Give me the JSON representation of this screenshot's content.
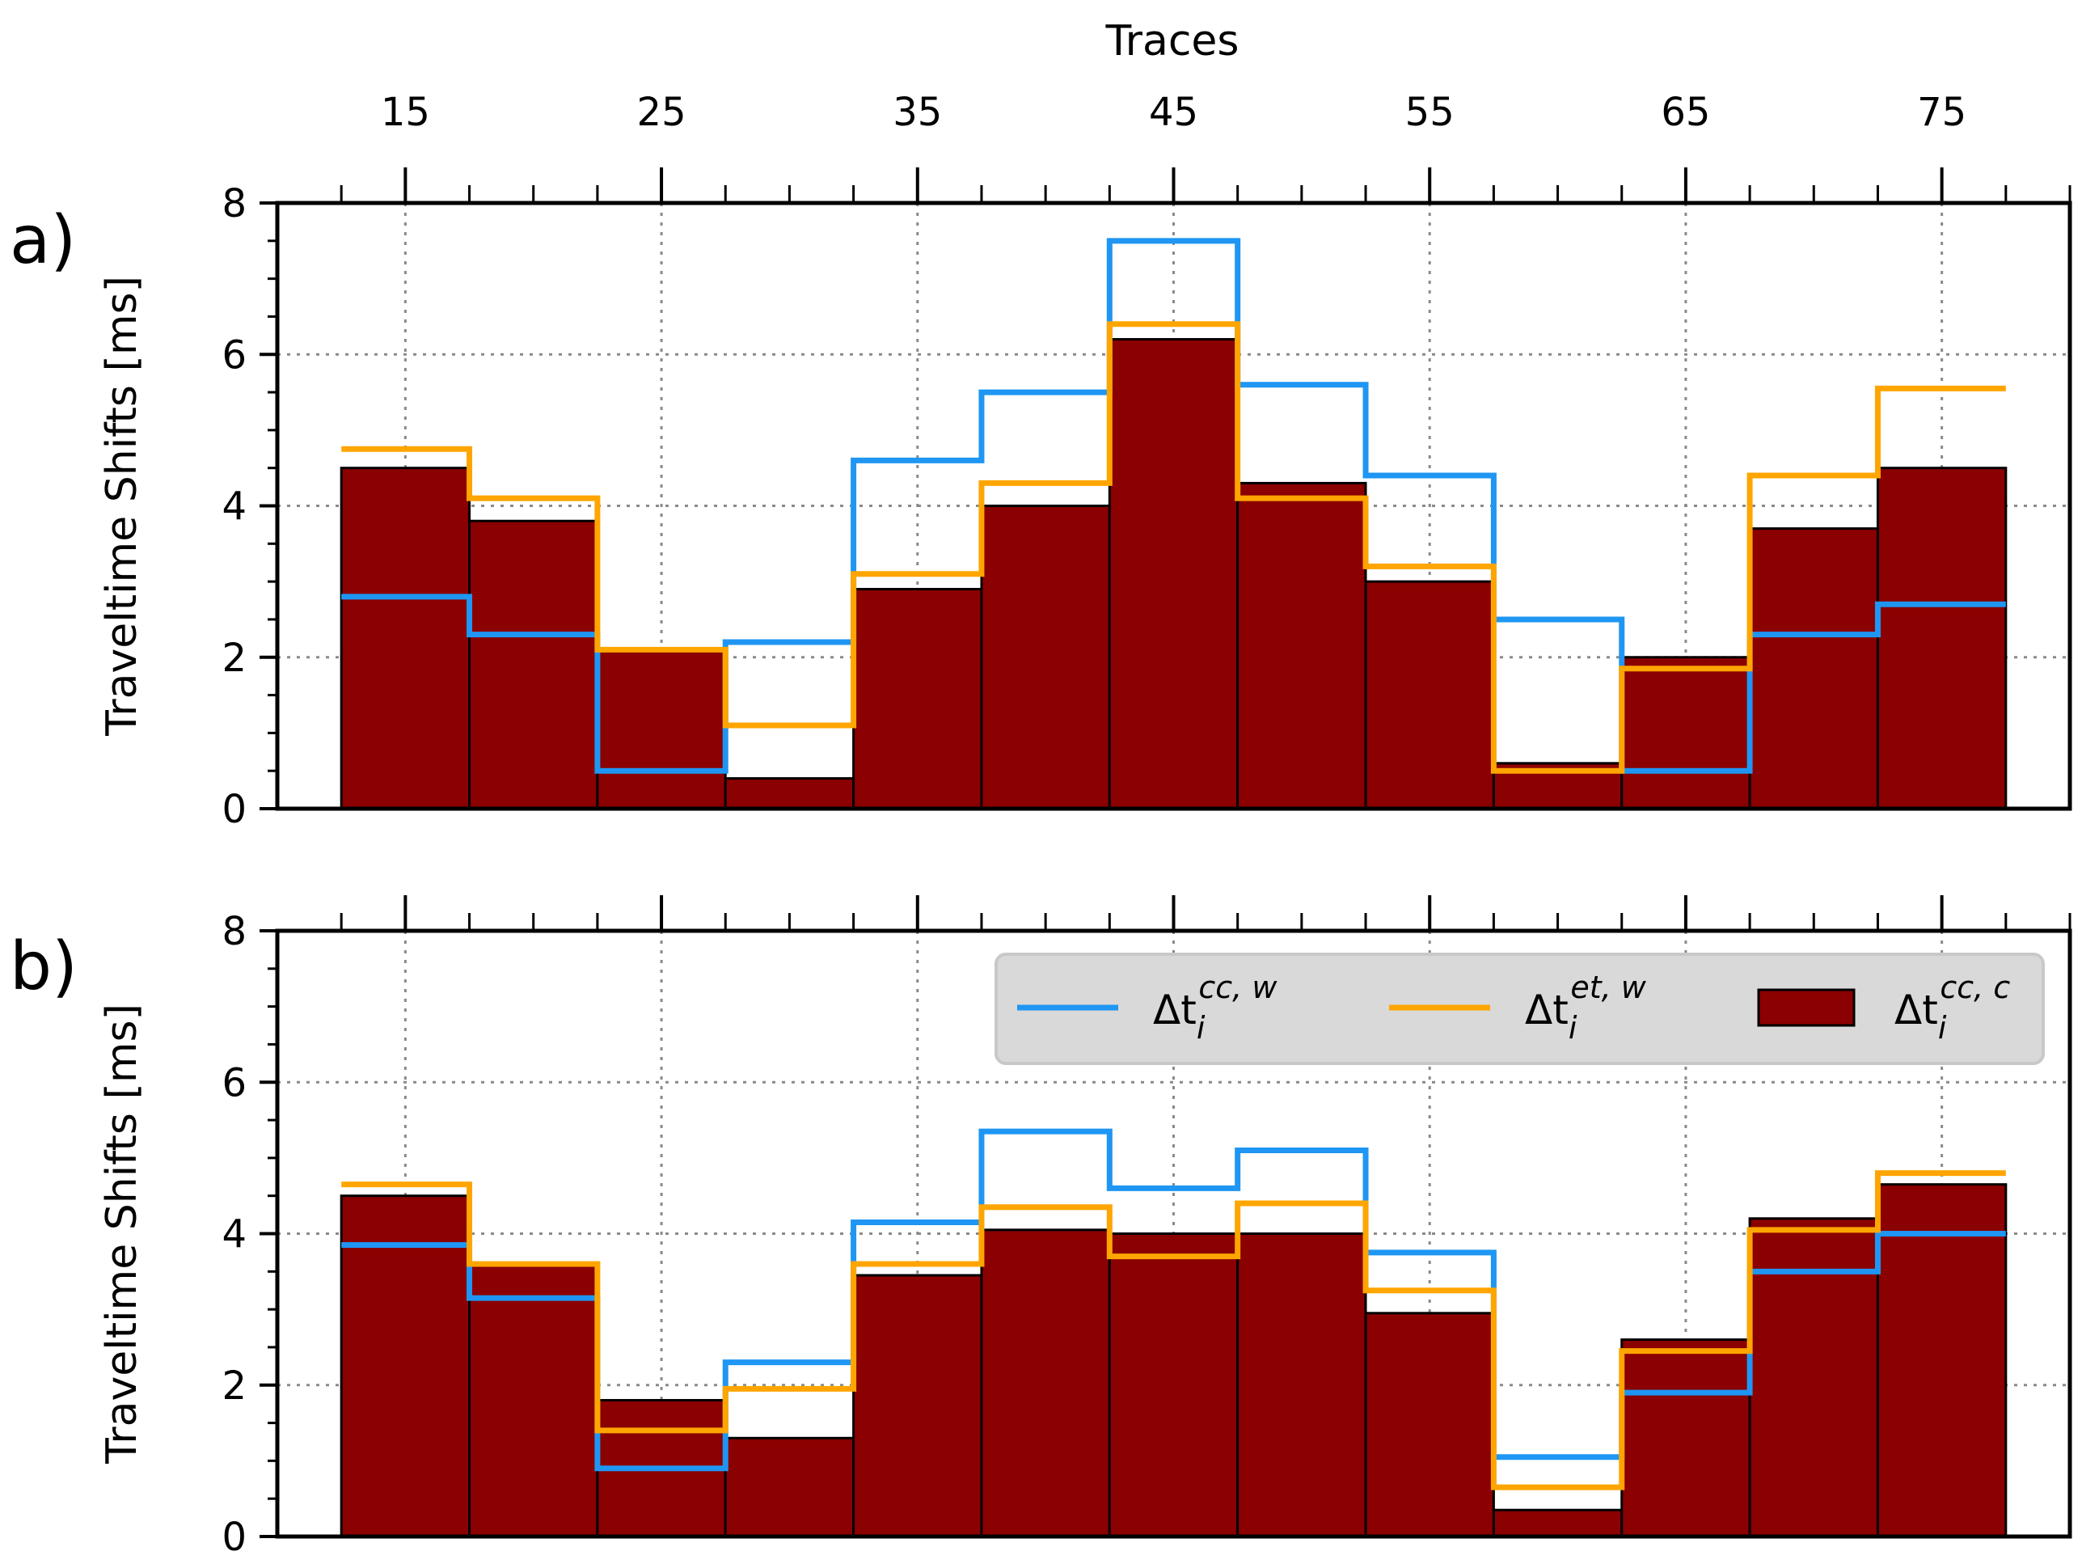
{
  "chart_data": {
    "type": "bar",
    "top_axis_label": "Traces",
    "ylabel": "Traveltime Shifts [ms]",
    "xlim": [
      10,
      80
    ],
    "ylim": [
      0,
      8
    ],
    "xticks": [
      15,
      25,
      35,
      45,
      55,
      65,
      75
    ],
    "yticks": [
      0,
      2,
      4,
      6,
      8
    ],
    "x_edges": [
      12.5,
      17.5,
      22.5,
      27.5,
      32.5,
      37.5,
      42.5,
      47.5,
      52.5,
      57.5,
      62.5,
      67.5,
      72.5,
      77.5
    ],
    "grid": true,
    "colors": {
      "cc_w": "#1f96f3",
      "et_w": "#ffa500",
      "cc_c": "#8b0000"
    },
    "legend": {
      "placement": "upper-right",
      "entries": [
        {
          "key": "cc_w",
          "kind": "line",
          "base": "Δt",
          "sub": "i",
          "sup": "cc, w"
        },
        {
          "key": "et_w",
          "kind": "line",
          "base": "Δt",
          "sub": "i",
          "sup": "et, w"
        },
        {
          "key": "cc_c",
          "kind": "patch",
          "base": "Δt",
          "sub": "i",
          "sup": "cc, c"
        }
      ]
    },
    "panels": [
      {
        "label": "a)",
        "series": [
          {
            "name": "cc_c",
            "values": [
              4.5,
              3.8,
              2.1,
              0.4,
              2.9,
              4.0,
              6.2,
              4.3,
              3.0,
              0.6,
              2.0,
              3.7,
              4.5
            ]
          },
          {
            "name": "cc_w",
            "values": [
              2.8,
              2.3,
              0.5,
              2.2,
              4.6,
              5.5,
              7.5,
              5.6,
              4.4,
              2.5,
              0.5,
              2.3,
              2.7
            ]
          },
          {
            "name": "et_w",
            "values": [
              4.75,
              4.1,
              2.1,
              1.1,
              3.1,
              4.3,
              6.4,
              4.1,
              3.2,
              0.5,
              1.85,
              4.4,
              5.55
            ]
          }
        ]
      },
      {
        "label": "b)",
        "series": [
          {
            "name": "cc_c",
            "values": [
              4.5,
              3.6,
              1.8,
              1.3,
              3.45,
              4.05,
              4.0,
              4.0,
              2.95,
              0.35,
              2.6,
              4.2,
              4.65
            ]
          },
          {
            "name": "cc_w",
            "values": [
              3.85,
              3.15,
              0.9,
              2.3,
              4.15,
              5.35,
              4.6,
              5.1,
              3.75,
              1.05,
              1.9,
              3.5,
              4.0
            ]
          },
          {
            "name": "et_w",
            "values": [
              4.65,
              3.6,
              1.4,
              1.95,
              3.6,
              4.35,
              3.7,
              4.4,
              3.25,
              0.65,
              2.45,
              4.05,
              4.8
            ]
          }
        ]
      }
    ]
  }
}
